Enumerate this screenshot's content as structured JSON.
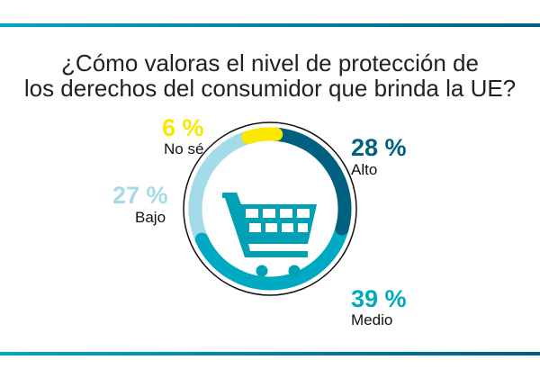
{
  "title_lines": [
    "¿Cómo valoras el nivel de protección de",
    "los derechos del consumidor que brinda la UE?"
  ],
  "chart_data": {
    "type": "pie",
    "style": "donut",
    "categories": [
      "No sé",
      "Alto",
      "Medio",
      "Bajo"
    ],
    "values": [
      6,
      28,
      39,
      27
    ],
    "value_labels": [
      "6 %",
      "28 %",
      "39 %",
      "27 %"
    ],
    "colors": [
      "#fbe800",
      "#00607f",
      "#00a9c2",
      "#a3dce8"
    ],
    "center_icon": "shopping-cart-icon",
    "icon_color": "#00a0b5"
  },
  "accent_gradient": [
    "#00a9be",
    "#005e80"
  ]
}
